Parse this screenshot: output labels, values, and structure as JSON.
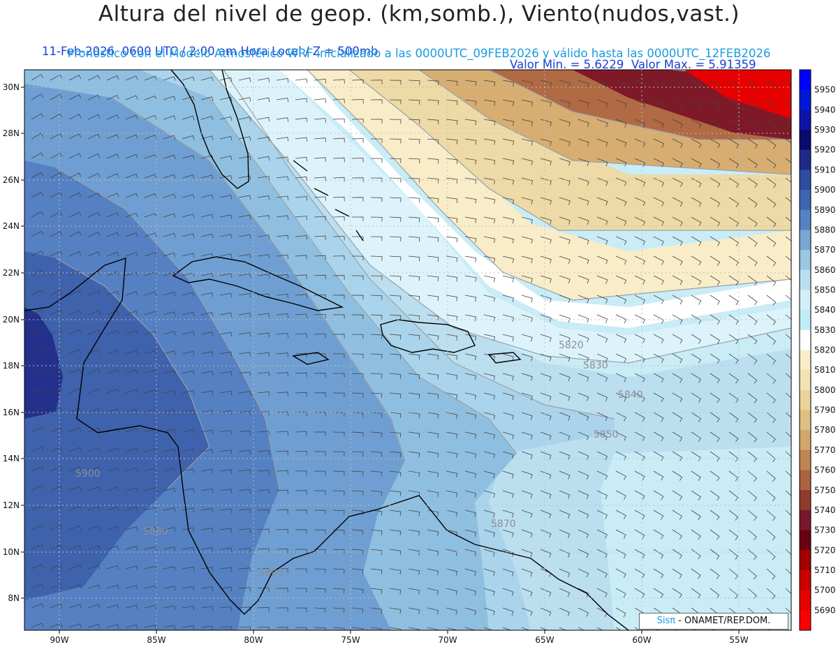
{
  "header": {
    "title": "Altura del nivel de geop. (km,somb.), Viento(nudos,vast.)",
    "subtitle_left": "11-Feb-2026  0600 UTC / 2:00 am Hora Local / Z = 500mb",
    "subtitle_right": "Valor Min. = 5.6229  Valor Max. = 5.91359",
    "subtitle_2": "Pronóstico con el Modelo Atmosférico WRF inicializado a las 0000UTC_09FEB2026 y válido hasta las  0000UTC_12FEB2026"
  },
  "map": {
    "lon_ticks": [
      "90W",
      "85W",
      "80W",
      "75W",
      "70W",
      "65W",
      "60W",
      "55W"
    ],
    "lat_ticks": [
      "30N",
      "28N",
      "26N",
      "24N",
      "22N",
      "20N",
      "18N",
      "16N",
      "14N",
      "12N",
      "10N",
      "8N"
    ],
    "contour_labels": [
      "5820",
      "5830",
      "5840",
      "5850",
      "5870",
      "5880",
      "5890",
      "5900"
    ]
  },
  "colorbar": {
    "labels": [
      "5950",
      "5940",
      "5930",
      "5920",
      "5910",
      "5900",
      "5890",
      "5880",
      "5870",
      "5860",
      "5850",
      "5840",
      "5830",
      "5820",
      "5810",
      "5800",
      "5790",
      "5780",
      "5770",
      "5760",
      "5750",
      "5740",
      "5730",
      "5720",
      "5710",
      "5700",
      "5690"
    ],
    "colors": [
      "#0000ff",
      "#0018d8",
      "#0c14a8",
      "#0a0a70",
      "#1e2a8a",
      "#2f4da0",
      "#3d66b2",
      "#5583c2",
      "#7aa6d4",
      "#9bc6e4",
      "#bcdff0",
      "#d4eef8",
      "#c0ecf6",
      "#ffffff",
      "#f8edc8",
      "#f2e2b4",
      "#ead29a",
      "#e0bf82",
      "#d2a66a",
      "#c08552",
      "#aa6440",
      "#8e3c2c",
      "#78182a",
      "#6a0010",
      "#a50000",
      "#cc0000",
      "#e60000",
      "#ff0000"
    ]
  },
  "credit": {
    "brand": "Sisπ",
    "text": " - ONAMET/REP.DOM."
  }
}
